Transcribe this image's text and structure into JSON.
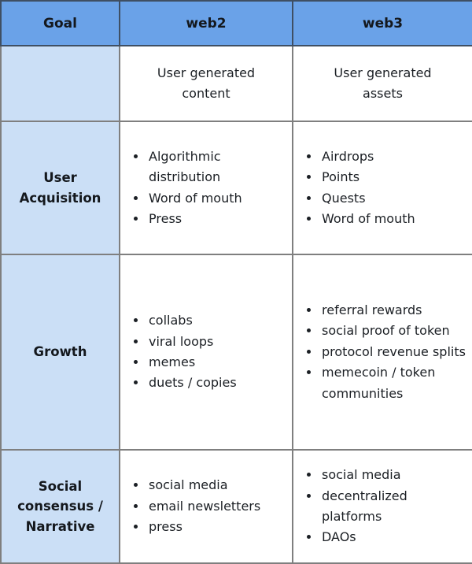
{
  "colors": {
    "header_bg": "#6aa2e8",
    "label_column_bg": "#cbdff6",
    "grid_line": "#7f7f7f",
    "header_line": "#3f4f63",
    "outer_line": "#2e2e2e",
    "text": "#1b1f24"
  },
  "table": {
    "header": {
      "goal": "Goal",
      "web2": "web2",
      "web3": "web3"
    },
    "subheader": {
      "goal": "",
      "web2": "User generated content",
      "web3": "User generated assets"
    },
    "rows": [
      {
        "goal": "User Acquisition",
        "web2": [
          "Algorithmic distribution",
          "Word of mouth",
          "Press"
        ],
        "web3": [
          "Airdrops",
          "Points",
          "Quests",
          "Word of mouth"
        ]
      },
      {
        "goal": "Growth",
        "web2": [
          "collabs",
          "viral loops",
          "memes",
          "duets / copies"
        ],
        "web3": [
          "referral rewards",
          "social proof of token",
          "protocol revenue splits",
          "memecoin / token communities"
        ]
      },
      {
        "goal": "Social consensus / Narrative",
        "web2": [
          "social media",
          "email newsletters",
          "press"
        ],
        "web3": [
          "social media",
          "decentralized platforms",
          "DAOs"
        ]
      }
    ]
  }
}
